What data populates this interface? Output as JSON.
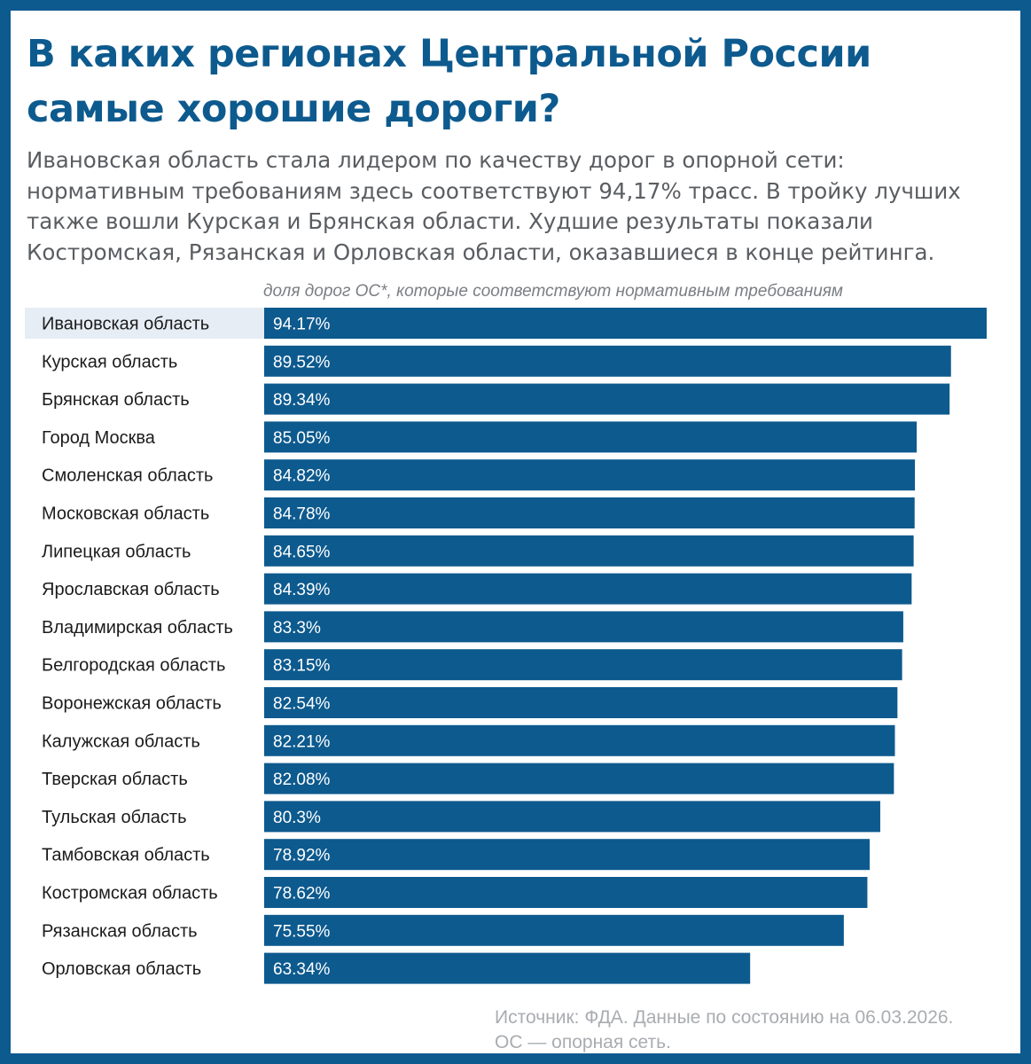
{
  "header": {
    "title": "В каких регионах Центральной России самые хорошие дороги?",
    "subtitle": "Ивановская область стала лидером по качеству дорог в опорной сети: нормативным требованиям здесь соответствуют 94,17% трасс. В тройку лучших также вошли Курская и Брянская области. Худшие результаты показали Костромская, Рязанская и Орловская области, оказавшиеся в конце рейтинга."
  },
  "footer": {
    "source_line1": "Источник: ФДА. Данные по состоянию на 06.03.2026.",
    "source_line2": "ОС —  опорная сеть."
  },
  "colors": {
    "accent": "#0d5a8e",
    "highlight_row": "#e6edf5"
  },
  "chart_data": {
    "type": "bar",
    "orientation": "horizontal",
    "title": "В каких регионах Центральной России самые хорошие дороги?",
    "xlabel": "доля дорог ОС*, которые соответствуют нормативным требованиям",
    "ylabel": "",
    "xlim": [
      0,
      94.17
    ],
    "grid": false,
    "legend": "none",
    "highlighted_category": "Ивановская область",
    "categories": [
      "Ивановская область",
      "Курская область",
      "Брянская область",
      "Город Москва",
      "Смоленская область",
      "Московская область",
      "Липецкая область",
      "Ярославская область",
      "Владимирская область",
      "Белгородская область",
      "Воронежская область",
      "Калужская область",
      "Тверская область",
      "Тульская область",
      "Тамбовская область",
      "Костромская область",
      "Рязанская область",
      "Орловская область"
    ],
    "values": [
      94.17,
      89.52,
      89.34,
      85.05,
      84.82,
      84.78,
      84.65,
      84.39,
      83.3,
      83.15,
      82.54,
      82.21,
      82.08,
      80.3,
      78.92,
      78.62,
      75.55,
      63.34
    ],
    "value_labels": [
      "94.17%",
      "89.52%",
      "89.34%",
      "85.05%",
      "84.82%",
      "84.78%",
      "84.65%",
      "84.39%",
      "83.3%",
      "83.15%",
      "82.54%",
      "82.21%",
      "82.08%",
      "80.3%",
      "78.92%",
      "78.62%",
      "75.55%",
      "63.34%"
    ]
  }
}
